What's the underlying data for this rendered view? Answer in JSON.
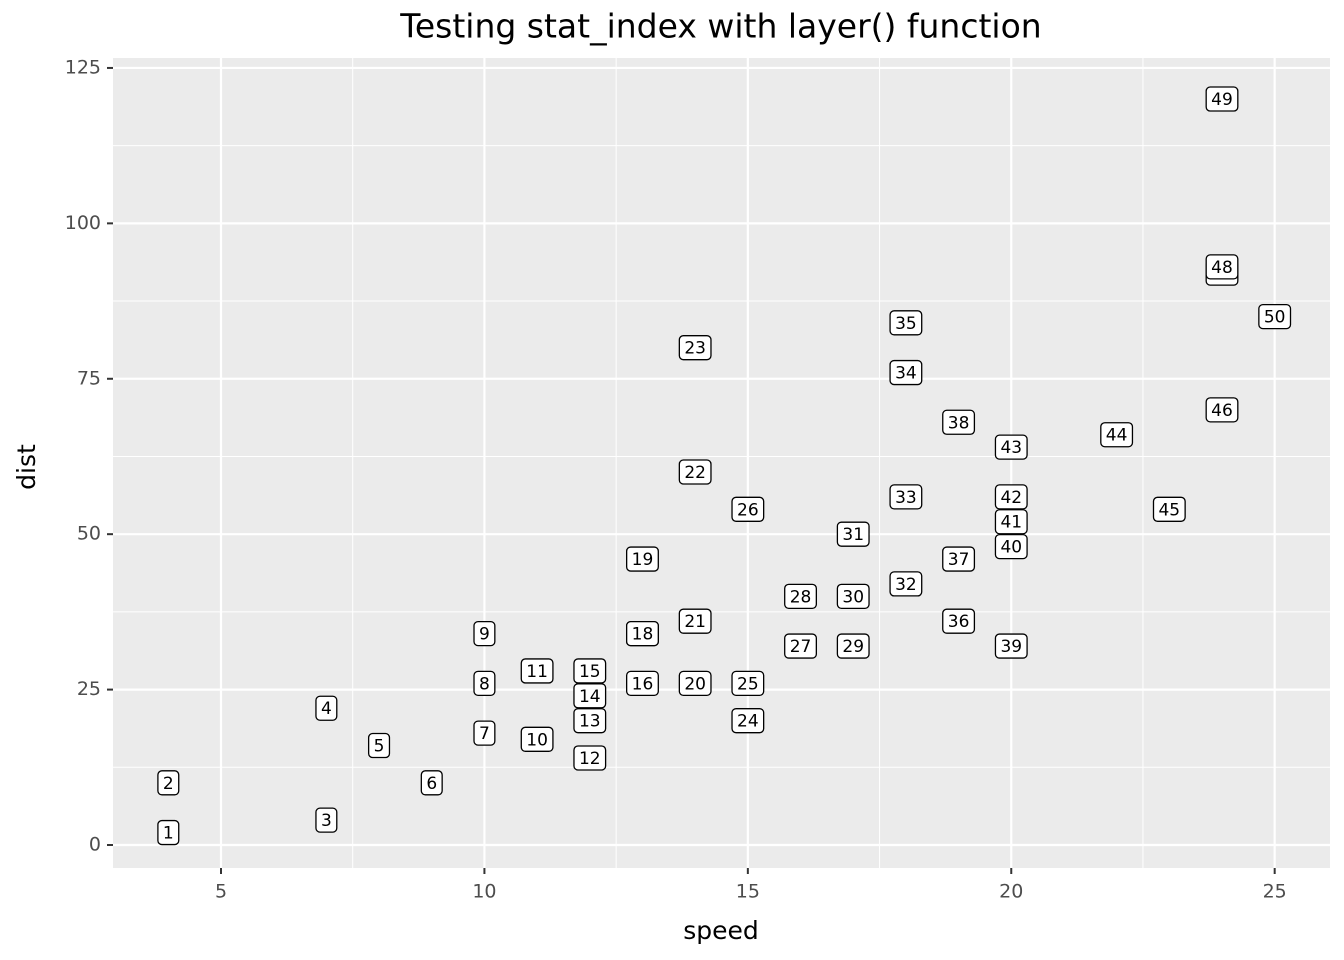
{
  "chart_data": {
    "type": "scatter",
    "title": "Testing stat_index with layer() function",
    "x_label": "speed",
    "y_label": "dist",
    "xlim": [
      2.95,
      26.05
    ],
    "ylim": [
      -3.7,
      126.6
    ],
    "xticks": [
      5,
      10,
      15,
      20,
      25
    ],
    "yticks": [
      0,
      25,
      50,
      75,
      100,
      125
    ],
    "xminor": [
      7.5,
      12.5,
      17.5,
      22.5
    ],
    "yminor": [
      12.5,
      37.5,
      62.5,
      87.5,
      112.5
    ],
    "grid": true,
    "series": [
      {
        "x": [
          4,
          4,
          7,
          7,
          8,
          9,
          10,
          10,
          10,
          11,
          11,
          12,
          12,
          12,
          12,
          13,
          13,
          13,
          13,
          14,
          14,
          14,
          14,
          15,
          15,
          15,
          16,
          16,
          17,
          17,
          17,
          18,
          18,
          18,
          18,
          19,
          19,
          19,
          20,
          20,
          20,
          20,
          20,
          22,
          23,
          24,
          24,
          24,
          24,
          25
        ],
        "values": [
          2,
          10,
          4,
          22,
          16,
          10,
          18,
          26,
          34,
          17,
          28,
          14,
          20,
          24,
          28,
          26,
          34,
          34,
          46,
          26,
          36,
          60,
          80,
          20,
          26,
          54,
          32,
          40,
          32,
          40,
          50,
          42,
          56,
          76,
          84,
          36,
          46,
          68,
          32,
          48,
          52,
          56,
          64,
          66,
          54,
          70,
          92,
          93,
          120,
          85
        ],
        "labels": [
          1,
          2,
          3,
          4,
          5,
          6,
          7,
          8,
          9,
          10,
          11,
          12,
          13,
          14,
          15,
          16,
          17,
          18,
          19,
          20,
          21,
          22,
          23,
          24,
          25,
          26,
          27,
          28,
          29,
          30,
          31,
          32,
          33,
          34,
          35,
          36,
          37,
          38,
          39,
          40,
          41,
          42,
          43,
          44,
          45,
          46,
          47,
          48,
          49,
          50
        ]
      }
    ]
  }
}
